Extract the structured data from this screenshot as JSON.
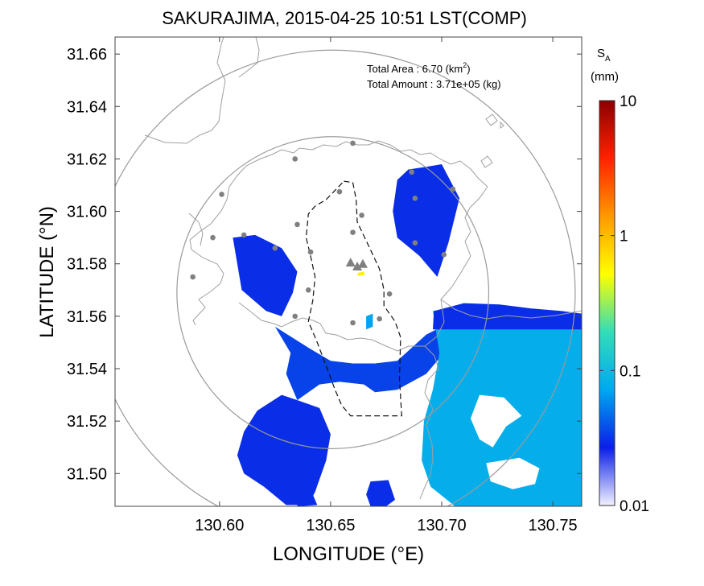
{
  "chart_data": {
    "type": "heatmap",
    "title": "SAKURAJIMA, 2015-04-25 10:51 LST(COMP)",
    "xlabel": "LONGITUDE (°E)",
    "ylabel": "LATITUDE (°N)",
    "xlim": [
      130.553,
      130.763
    ],
    "ylim": [
      31.4875,
      31.6665
    ],
    "xticks": [
      "130.60",
      "130.65",
      "130.70",
      "130.75"
    ],
    "yticks": [
      "31.50",
      "31.52",
      "31.54",
      "31.56",
      "31.58",
      "31.60",
      "31.62",
      "31.64",
      "31.66"
    ],
    "info": {
      "area_label": "Total Area   : 6.70 (km",
      "area_sup": "2",
      "area_close": ")",
      "amount_label": "Total Amount : 3.71e+05 (kg)"
    },
    "colorbar": {
      "label": "S",
      "label_sub": "A",
      "unit": "(mm)",
      "scale": "log",
      "range": [
        0.01,
        10
      ],
      "ticks": [
        "10",
        "1",
        "0.1",
        "0.01"
      ],
      "colors": [
        "#f2f2ff",
        "#0b1ee6",
        "#00a8f0",
        "#33ddb8",
        "#ffff00",
        "#ff9900",
        "#ff2200",
        "#8b0000"
      ]
    },
    "volcano_vents": [
      {
        "lon": 130.659,
        "lat": 31.5805
      },
      {
        "lon": 130.662,
        "lat": 31.579
      },
      {
        "lon": 130.6645,
        "lat": 31.58
      }
    ],
    "stations": [
      {
        "lon": 130.66,
        "lat": 31.626
      },
      {
        "lon": 130.634,
        "lat": 31.62
      },
      {
        "lon": 130.6865,
        "lat": 31.615
      },
      {
        "lon": 130.601,
        "lat": 31.6065
      },
      {
        "lon": 130.688,
        "lat": 31.605
      },
      {
        "lon": 130.654,
        "lat": 31.6075
      },
      {
        "lon": 130.705,
        "lat": 31.6085
      },
      {
        "lon": 130.664,
        "lat": 31.5985
      },
      {
        "lon": 130.635,
        "lat": 31.595
      },
      {
        "lon": 130.66,
        "lat": 31.592
      },
      {
        "lon": 130.597,
        "lat": 31.59
      },
      {
        "lon": 130.611,
        "lat": 31.591
      },
      {
        "lon": 130.625,
        "lat": 31.586
      },
      {
        "lon": 130.641,
        "lat": 31.5845
      },
      {
        "lon": 130.688,
        "lat": 31.588
      },
      {
        "lon": 130.701,
        "lat": 31.5835
      },
      {
        "lon": 130.588,
        "lat": 31.575
      },
      {
        "lon": 130.64,
        "lat": 31.57
      },
      {
        "lon": 130.6765,
        "lat": 31.5685
      },
      {
        "lon": 130.634,
        "lat": 31.56
      },
      {
        "lon": 130.66,
        "lat": 31.5575
      },
      {
        "lon": 130.672,
        "lat": 31.559
      }
    ],
    "range_rings": [
      {
        "center_lon": 130.651,
        "center_lat": 31.569,
        "radius_deg_lat": 0.0595
      },
      {
        "center_lon": 130.651,
        "center_lat": 31.569,
        "radius_deg_lat": 0.0925
      }
    ],
    "deposit_regions": [
      {
        "level": 0.03,
        "polygon": [
          [
            130.606,
            31.59
          ],
          [
            130.616,
            31.591
          ],
          [
            130.628,
            31.586
          ],
          [
            130.635,
            31.577
          ],
          [
            130.633,
            31.569
          ],
          [
            130.628,
            31.56
          ],
          [
            130.621,
            31.562
          ],
          [
            130.61,
            31.57
          ],
          [
            130.608,
            31.58
          ]
        ]
      },
      {
        "level": 0.03,
        "polygon": [
          [
            130.685,
            31.616
          ],
          [
            130.693,
            31.617
          ],
          [
            130.7,
            31.618
          ],
          [
            130.708,
            31.605
          ],
          [
            130.703,
            31.588
          ],
          [
            130.698,
            31.575
          ],
          [
            130.69,
            31.583
          ],
          [
            130.68,
            31.59
          ],
          [
            130.678,
            31.6
          ],
          [
            130.68,
            31.612
          ]
        ]
      },
      {
        "level": 0.035,
        "polygon": [
          [
            130.625,
            31.556
          ],
          [
            130.64,
            31.548
          ],
          [
            130.65,
            31.543
          ],
          [
            130.66,
            31.542
          ],
          [
            130.67,
            31.542
          ],
          [
            130.68,
            31.543
          ],
          [
            130.693,
            31.553
          ],
          [
            130.7,
            31.556
          ],
          [
            130.7,
            31.545
          ],
          [
            130.693,
            31.538
          ],
          [
            130.68,
            31.532
          ],
          [
            130.67,
            31.531
          ],
          [
            130.665,
            31.534
          ],
          [
            130.654,
            31.535
          ],
          [
            130.645,
            31.534
          ],
          [
            130.635,
            31.528
          ],
          [
            130.63,
            31.538
          ],
          [
            130.632,
            31.546
          ]
        ]
      },
      {
        "level": 0.03,
        "polygon": [
          [
            130.628,
            31.53
          ],
          [
            130.635,
            31.528
          ],
          [
            130.645,
            31.525
          ],
          [
            130.65,
            31.515
          ],
          [
            130.648,
            31.505
          ],
          [
            130.643,
            31.493
          ],
          [
            130.64,
            31.488
          ],
          [
            130.63,
            31.488
          ],
          [
            130.62,
            31.495
          ],
          [
            130.611,
            31.5
          ],
          [
            130.608,
            31.507
          ],
          [
            130.611,
            31.516
          ],
          [
            130.617,
            31.524
          ]
        ]
      },
      {
        "level": 0.03,
        "polygon": [
          [
            130.668,
            31.497
          ],
          [
            130.676,
            31.4975
          ],
          [
            130.679,
            31.49
          ],
          [
            130.675,
            31.4875
          ],
          [
            130.668,
            31.4875
          ],
          [
            130.666,
            31.492
          ]
        ]
      },
      {
        "level": 0.03,
        "polygon": [
          [
            130.635,
            31.492
          ],
          [
            130.641,
            31.494
          ],
          [
            130.644,
            31.488
          ],
          [
            130.635,
            31.4875
          ]
        ]
      },
      {
        "level": 0.08,
        "polygon": [
          [
            130.696,
            31.562
          ],
          [
            130.71,
            31.564
          ],
          [
            130.73,
            31.563
          ],
          [
            130.75,
            31.5615
          ],
          [
            130.763,
            31.56
          ],
          [
            130.763,
            31.4875
          ],
          [
            130.744,
            31.4875
          ],
          [
            130.725,
            31.4875
          ],
          [
            130.706,
            31.4875
          ],
          [
            130.695,
            31.495
          ],
          [
            130.691,
            31.505
          ],
          [
            130.692,
            31.52
          ],
          [
            130.696,
            31.532
          ],
          [
            130.699,
            31.546
          ]
        ]
      },
      {
        "level": 0.03,
        "polygon": [
          [
            130.6965,
            31.562
          ],
          [
            130.71,
            31.565
          ],
          [
            130.726,
            31.5645
          ],
          [
            130.74,
            31.563
          ],
          [
            130.754,
            31.562
          ],
          [
            130.763,
            31.561
          ],
          [
            130.763,
            31.555
          ],
          [
            130.71,
            31.555
          ],
          [
            130.696,
            31.555
          ]
        ]
      },
      {
        "level": 0.07,
        "polygon": [
          [
            130.666,
            31.56
          ],
          [
            130.669,
            31.561
          ],
          [
            130.669,
            31.556
          ],
          [
            130.666,
            31.555
          ]
        ]
      },
      {
        "level": 0.6,
        "polygon": [
          [
            130.662,
            31.5765
          ],
          [
            130.665,
            31.577
          ],
          [
            130.6655,
            31.5758
          ],
          [
            130.6625,
            31.5754
          ]
        ]
      }
    ],
    "no_data_regions": [
      {
        "polygon": [
          [
            130.717,
            31.53
          ],
          [
            130.728,
            31.529
          ],
          [
            130.736,
            31.522
          ],
          [
            130.729,
            31.518
          ],
          [
            130.723,
            31.51
          ],
          [
            130.717,
            31.513
          ],
          [
            130.713,
            31.521
          ]
        ]
      },
      {
        "polygon": [
          [
            130.72,
            31.504
          ],
          [
            130.735,
            31.506
          ],
          [
            130.744,
            31.502
          ],
          [
            130.742,
            31.496
          ],
          [
            130.732,
            31.494
          ],
          [
            130.722,
            31.497
          ]
        ]
      }
    ]
  }
}
